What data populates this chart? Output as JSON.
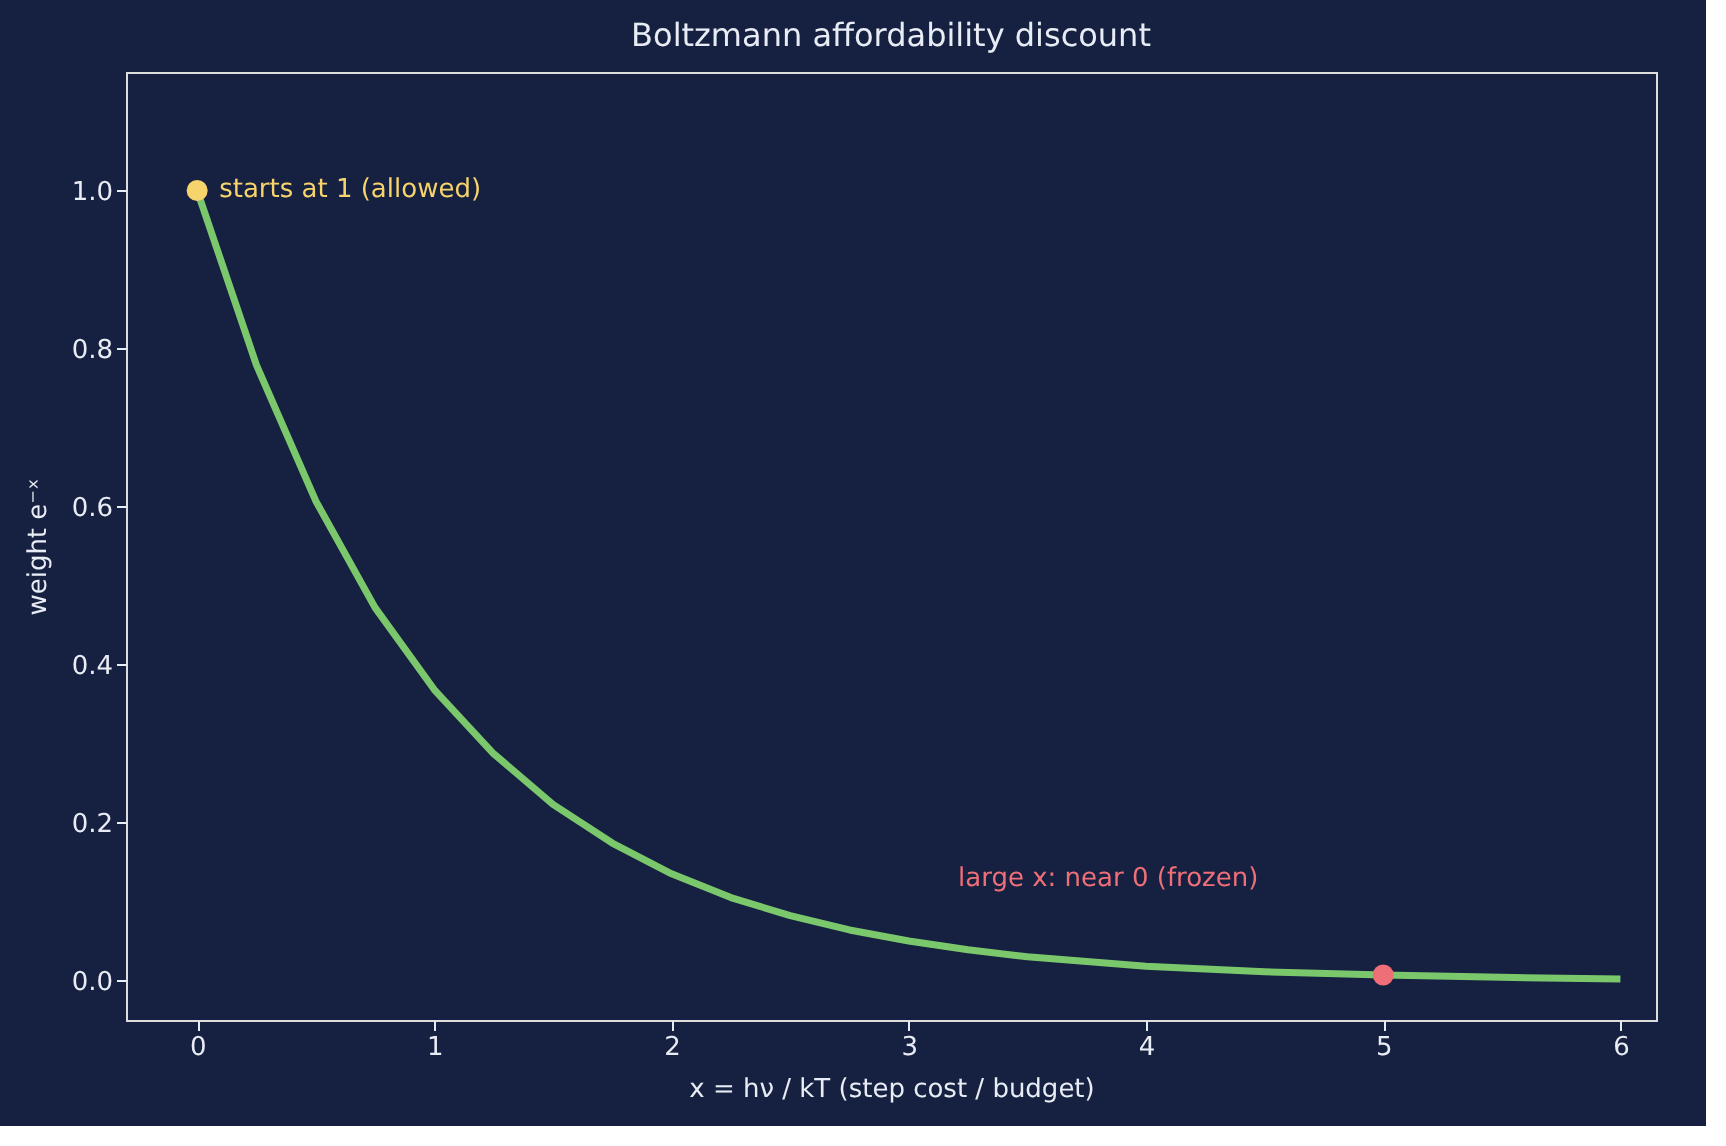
{
  "chart_data": {
    "type": "line",
    "title": "Boltzmann affordability discount",
    "xlabel": "x = hν / kT   (step cost / budget)",
    "ylabel": "weight  e⁻ˣ",
    "xlim": [
      -0.3,
      6.15
    ],
    "ylim": [
      -0.05,
      1.15
    ],
    "xticks": [
      0,
      1,
      2,
      3,
      4,
      5,
      6
    ],
    "yticks": [
      {
        "value": 0,
        "label": "0.0"
      },
      0.2,
      0.4,
      0.6,
      0.8,
      {
        "value": 1,
        "label": "1.0"
      }
    ],
    "grid": false,
    "series": [
      {
        "color": "#7bc86c",
        "marker": "none",
        "line_style": "solid",
        "x": [
          0,
          0.25,
          0.5,
          0.75,
          1,
          1.25,
          1.5,
          1.75,
          2,
          2.25,
          2.5,
          2.75,
          3,
          3.25,
          3.5,
          3.75,
          4,
          4.5,
          5,
          5.5,
          6
        ],
        "values": [
          1.0,
          0.779,
          0.607,
          0.472,
          0.368,
          0.287,
          0.223,
          0.174,
          0.135,
          0.105,
          0.082,
          0.064,
          0.05,
          0.039,
          0.03,
          0.024,
          0.018,
          0.011,
          0.007,
          0.004,
          0.002
        ]
      },
      {
        "type": "scatter",
        "marker": "circle",
        "x": [
          0,
          5
        ],
        "values": [
          1.0,
          0.007
        ],
        "colors": [
          "#f6d36b",
          "#ef6f78"
        ]
      }
    ],
    "annotations": [
      {
        "text": "starts at 1 (allowed)",
        "x": 0,
        "y": 1.0
      },
      "large x: near 0 (frozen)"
    ]
  }
}
